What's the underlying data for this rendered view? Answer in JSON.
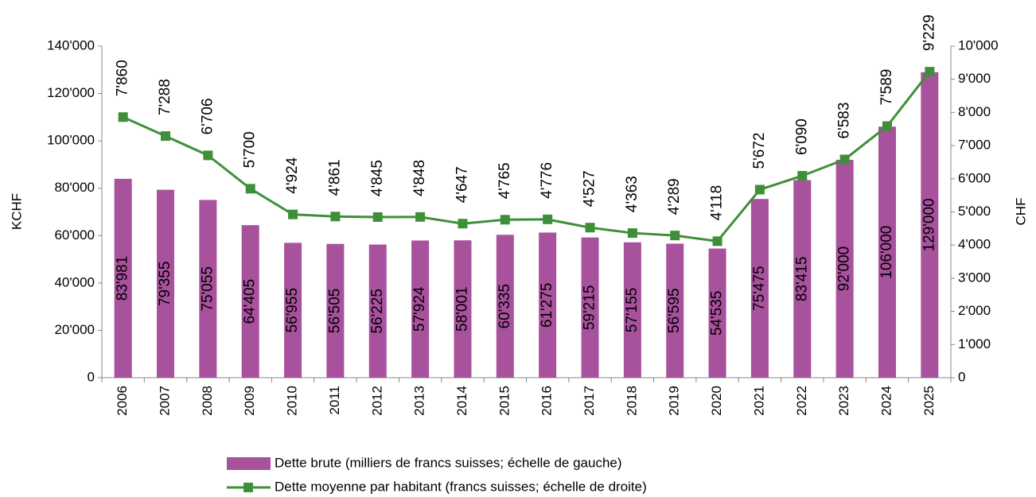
{
  "chart_data": {
    "type": "bar_line",
    "categories": [
      "2006",
      "2007",
      "2008",
      "2009",
      "2010",
      "2011",
      "2012",
      "2013",
      "2014",
      "2015",
      "2016",
      "2017",
      "2018",
      "2019",
      "2020",
      "2021",
      "2022",
      "2023",
      "2024",
      "2025"
    ],
    "ylabel": "KCHF",
    "y2label": "CHF",
    "ylim": [
      0,
      140000
    ],
    "yticks": [
      0,
      {
        "value": 20000,
        "label": "20'000"
      },
      {
        "value": 40000,
        "label": "40'000"
      },
      {
        "value": 60000,
        "label": "60'000"
      },
      {
        "value": 80000,
        "label": "80'000"
      },
      {
        "value": 100000,
        "label": "100'000"
      },
      {
        "value": 120000,
        "label": "120'000"
      },
      {
        "value": 140000,
        "label": "140'000"
      }
    ],
    "y2lim": [
      0,
      10000
    ],
    "y2ticks": [
      0,
      {
        "value": 1000,
        "label": "1'000"
      },
      {
        "value": 2000,
        "label": "2'000"
      },
      {
        "value": 3000,
        "label": "3'000"
      },
      {
        "value": 4000,
        "label": "4'000"
      },
      {
        "value": 5000,
        "label": "5'000"
      },
      {
        "value": 6000,
        "label": "6'000"
      },
      {
        "value": 7000,
        "label": "7'000"
      },
      {
        "value": 8000,
        "label": "8'000"
      },
      {
        "value": 9000,
        "label": "9'000"
      },
      {
        "value": 10000,
        "label": "10'000"
      }
    ],
    "series": [
      {
        "name": "Dette brute (milliers de francs suisses; échelle de gauche)",
        "type": "bar",
        "color": "#a8519c",
        "values": [
          83981,
          79355,
          75055,
          64405,
          56955,
          56505,
          56225,
          57924,
          58001,
          60335,
          61275,
          59215,
          57155,
          56595,
          54535,
          75475,
          83415,
          92000,
          106000,
          129000
        ],
        "value_labels": [
          "83'981",
          "79'355",
          "75'055",
          "64'405",
          "56'955",
          "56'505",
          "56'225",
          "57'924",
          "58'001",
          "60'335",
          "61'275",
          "59'215",
          "57'155",
          "56'595",
          "54'535",
          "75'475",
          "83'415",
          "92'000",
          "106'000",
          "129'000"
        ]
      },
      {
        "name": "Dette moyenne par habitant (francs suisses; échelle de droite)",
        "type": "line",
        "axis": "y2",
        "color": "#3f8f3a",
        "values": [
          7860,
          7288,
          6706,
          5700,
          4924,
          4861,
          4845,
          4848,
          4647,
          4765,
          4776,
          4527,
          4363,
          4289,
          4118,
          5672,
          6090,
          6583,
          7589,
          9229
        ],
        "value_labels": [
          "7'860",
          "7'288",
          "6'706",
          "5'700",
          "4'924",
          "4'861",
          "4'845",
          "4'848",
          "4'647",
          "4'765",
          "4'776",
          "4'527",
          "4'363",
          "4'289",
          "4'118",
          "5'672",
          "6'090",
          "6'583",
          "7'589",
          "9'229"
        ]
      }
    ]
  }
}
